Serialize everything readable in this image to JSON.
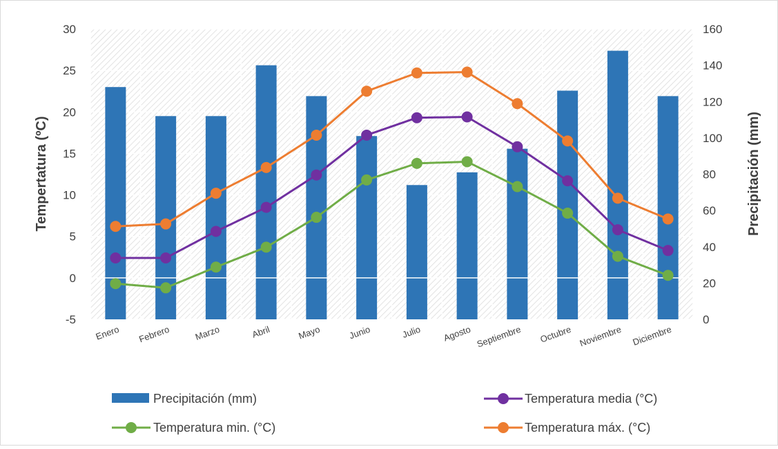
{
  "chart_data": {
    "type": "bar",
    "categories": [
      "Enero",
      "Febrero",
      "Marzo",
      "Abril",
      "Mayo",
      "Junio",
      "Julio",
      "Agosto",
      "Septiembre",
      "Octubre",
      "Noviembre",
      "Diciembre"
    ],
    "ylabel": "Tempertatura (ºC)",
    "y2label": "Precipitación (mm)",
    "ylim": [
      -5,
      30
    ],
    "y2lim": [
      0,
      160
    ],
    "yticks": [
      -5,
      0,
      5,
      10,
      15,
      20,
      25,
      30
    ],
    "y2ticks": [
      0,
      20,
      40,
      60,
      80,
      100,
      120,
      140,
      160
    ],
    "grid": true,
    "legend_position": "bottom",
    "bar_series": {
      "name": "Precipitación (mm)",
      "axis": "right",
      "color": "#2E75B6",
      "values": [
        128,
        112,
        112,
        140,
        123,
        101,
        74,
        81,
        94,
        126,
        148,
        123
      ]
    },
    "line_series": [
      {
        "name": "Temperatura media (°C)",
        "axis": "left",
        "color": "#7030A0",
        "values": [
          2.4,
          2.4,
          5.6,
          8.5,
          12.4,
          17.2,
          19.3,
          19.4,
          15.8,
          11.7,
          5.8,
          3.3
        ]
      },
      {
        "name": "Temperatura min. (°C)",
        "axis": "left",
        "color": "#70AD47",
        "values": [
          -0.7,
          -1.2,
          1.3,
          3.7,
          7.3,
          11.8,
          13.8,
          14.0,
          11.0,
          7.8,
          2.6,
          0.3
        ]
      },
      {
        "name": "Temperatura máx. (°C)",
        "axis": "left",
        "color": "#ED7D31",
        "values": [
          6.2,
          6.5,
          10.2,
          13.3,
          17.2,
          22.5,
          24.7,
          24.8,
          21.0,
          16.5,
          9.6,
          7.1
        ]
      }
    ]
  },
  "legend": [
    {
      "label": "Precipitación (mm)",
      "kind": "bar",
      "color": "#2E75B6"
    },
    {
      "label": "Temperatura media (°C)",
      "kind": "line",
      "color": "#7030A0"
    },
    {
      "label": "Temperatura min. (°C)",
      "kind": "line",
      "color": "#70AD47"
    },
    {
      "label": "Temperatura máx. (°C)",
      "kind": "line",
      "color": "#ED7D31"
    }
  ]
}
